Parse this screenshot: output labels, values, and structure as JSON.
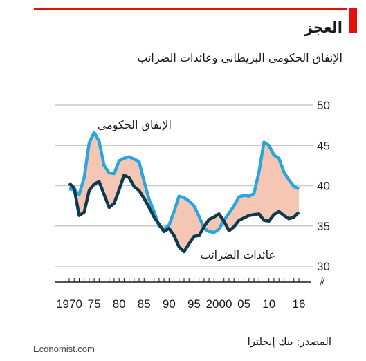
{
  "header": {
    "title": "العجز",
    "subtitle": "الإنفاق الحكومي البريطاني وعائدات الضرائب"
  },
  "footer": {
    "source": "المصدر: بنك إنجلترا",
    "brand": "Economist.com"
  },
  "colors": {
    "accent_red": "#e3120b",
    "spending_line": "#2aa6dd",
    "revenue_line": "#0f3a4d",
    "gap_fill": "#f6c6b5",
    "grid": "#c9c9c9"
  },
  "chart_data": {
    "type": "line",
    "title": "العجز",
    "subtitle": "الإنفاق الحكومي البريطاني وعائدات الضرائب",
    "xlabel": "",
    "ylabel": "",
    "xlim": [
      1970,
      2016
    ],
    "ylim": [
      30,
      50
    ],
    "y_ticks": [
      30,
      35,
      40,
      45,
      50
    ],
    "x_tick_labels": [
      {
        "year": 1970,
        "label": "1970"
      },
      {
        "year": 1975,
        "label": "75"
      },
      {
        "year": 1980,
        "label": "80"
      },
      {
        "year": 1985,
        "label": "85"
      },
      {
        "year": 1990,
        "label": "90"
      },
      {
        "year": 1995,
        "label": "95"
      },
      {
        "year": 2000,
        "label": "2000"
      },
      {
        "year": 2005,
        "label": "05"
      },
      {
        "year": 2010,
        "label": "10"
      },
      {
        "year": 2016,
        "label": "16"
      }
    ],
    "axis_break_symbol": "⫽",
    "grid": true,
    "shaded_gap_between_series": true,
    "x": [
      1970,
      1971,
      1972,
      1973,
      1974,
      1975,
      1976,
      1977,
      1978,
      1979,
      1980,
      1981,
      1982,
      1983,
      1984,
      1985,
      1986,
      1987,
      1988,
      1989,
      1990,
      1991,
      1992,
      1993,
      1994,
      1995,
      1996,
      1997,
      1998,
      1999,
      2000,
      2001,
      2002,
      2003,
      2004,
      2005,
      2006,
      2007,
      2008,
      2009,
      2010,
      2011,
      2012,
      2013,
      2014,
      2015,
      2016
    ],
    "series": [
      {
        "name": "الإنفاق الحكومي",
        "color": "#2aa6dd",
        "values": [
          39.6,
          39.5,
          38.9,
          41.0,
          45.3,
          46.6,
          45.5,
          42.5,
          41.6,
          41.5,
          43.1,
          43.4,
          43.6,
          43.3,
          43.0,
          40.5,
          38.3,
          36.8,
          35.0,
          34.6,
          35.1,
          36.8,
          38.7,
          38.5,
          38.1,
          37.5,
          36.2,
          34.7,
          34.3,
          34.2,
          34.6,
          35.7,
          36.6,
          37.5,
          38.6,
          38.8,
          38.7,
          39.0,
          41.7,
          45.4,
          45.0,
          43.8,
          43.4,
          41.7,
          40.7,
          39.9,
          39.6
        ]
      },
      {
        "name": "عائدات الضرائب",
        "color": "#0f3a4d",
        "values": [
          40.3,
          39.7,
          36.3,
          36.7,
          39.4,
          40.2,
          40.5,
          38.9,
          37.3,
          37.8,
          39.5,
          41.3,
          41.0,
          39.9,
          39.4,
          38.4,
          37.3,
          36.1,
          35.2,
          34.3,
          34.7,
          33.8,
          32.4,
          31.8,
          32.8,
          33.7,
          33.8,
          34.9,
          35.8,
          36.1,
          36.5,
          35.6,
          34.4,
          34.9,
          35.7,
          36.0,
          36.3,
          36.4,
          36.5,
          35.7,
          35.6,
          36.4,
          36.8,
          36.3,
          35.9,
          36.1,
          36.7
        ]
      }
    ],
    "annotations": [
      {
        "text": "الإنفاق الحكومي",
        "series": "الإنفاق الحكومي"
      },
      {
        "text": "عائدات الضرائب",
        "series": "عائدات الضرائب"
      }
    ]
  }
}
